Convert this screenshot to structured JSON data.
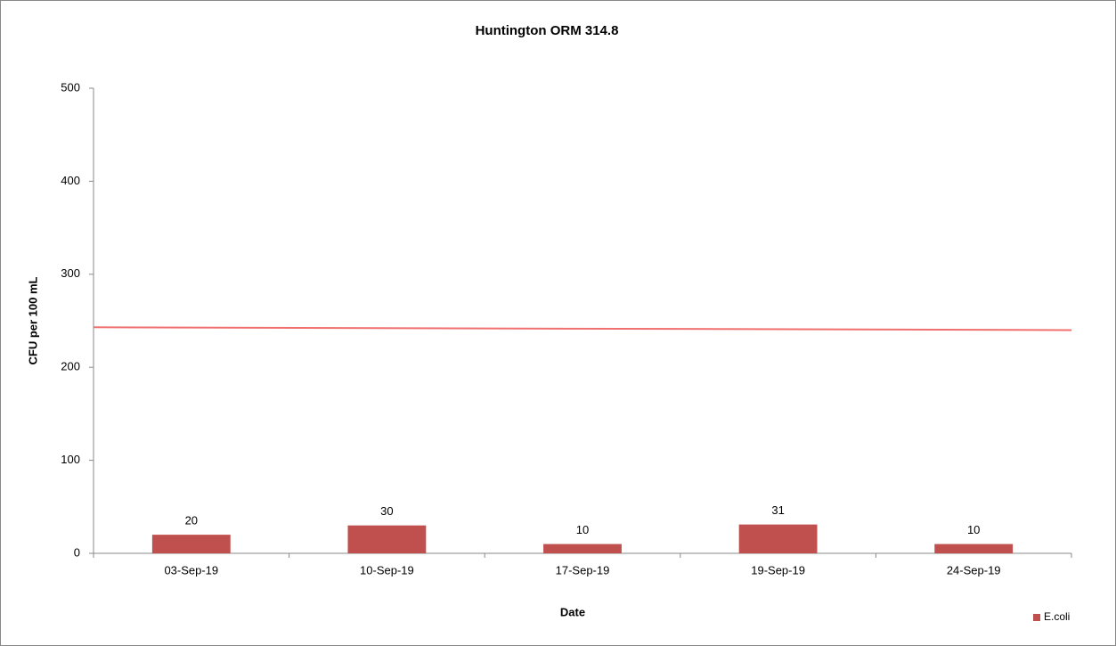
{
  "chart_data": {
    "type": "bar",
    "title": "Huntington ORM 314.8",
    "x_label": "Date",
    "y_label": "CFU per 100 mL",
    "categories": [
      "03-Sep-19",
      "10-Sep-19",
      "17-Sep-19",
      "19-Sep-19",
      "24-Sep-19"
    ],
    "series": [
      {
        "name": "E.coli",
        "color": "#c0504d",
        "values": [
          20,
          30,
          10,
          31,
          10
        ]
      }
    ],
    "reference_line": {
      "color": "#f07070",
      "start": 243,
      "end": 240
    },
    "ylim": [
      0,
      500
    ],
    "yticks": [
      0,
      100,
      200,
      300,
      400,
      500
    ],
    "grid": false,
    "legend": "bottom-right"
  }
}
